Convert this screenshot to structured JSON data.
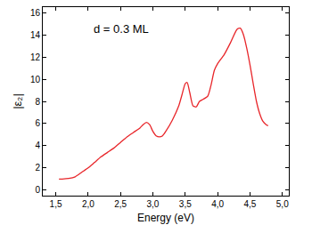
{
  "chart_data": {
    "type": "line",
    "x_label": "Energy (eV)",
    "y_label": "|ε₂|",
    "annotations": [
      "d = 0.3 ML"
    ],
    "color": "#e8262a",
    "grid": false,
    "x": [
      1.55,
      1.6,
      1.7,
      1.8,
      1.9,
      2.0,
      2.1,
      2.2,
      2.3,
      2.4,
      2.5,
      2.6,
      2.7,
      2.8,
      2.85,
      2.9,
      2.95,
      3.0,
      3.05,
      3.1,
      3.15,
      3.2,
      3.3,
      3.4,
      3.45,
      3.5,
      3.53,
      3.57,
      3.62,
      3.67,
      3.72,
      3.78,
      3.85,
      3.9,
      3.95,
      4.0,
      4.1,
      4.2,
      4.3,
      4.35,
      4.4,
      4.45,
      4.5,
      4.55,
      4.6,
      4.65,
      4.7,
      4.75,
      4.78
    ],
    "values": [
      1.0,
      1.0,
      1.05,
      1.2,
      1.6,
      2.0,
      2.5,
      3.0,
      3.4,
      3.8,
      4.3,
      4.8,
      5.2,
      5.6,
      5.9,
      6.1,
      5.9,
      5.3,
      4.9,
      4.8,
      4.9,
      5.3,
      6.3,
      7.6,
      8.6,
      9.6,
      9.7,
      8.8,
      7.6,
      7.5,
      8.0,
      8.2,
      8.5,
      9.5,
      10.8,
      11.4,
      12.2,
      13.3,
      14.5,
      14.6,
      14.0,
      12.8,
      11.3,
      9.6,
      8.0,
      6.9,
      6.2,
      5.9,
      5.8
    ],
    "xlim": [
      1.3,
      5.1
    ],
    "xticks": [
      {
        "value": 1.5,
        "label": "1,5"
      },
      {
        "value": 2.0,
        "label": "2,0"
      },
      {
        "value": 2.5,
        "label": "2,5"
      },
      {
        "value": 3.0,
        "label": "3,0"
      },
      {
        "value": 3.5,
        "label": "3,5"
      },
      {
        "value": 4.0,
        "label": "4,0"
      },
      {
        "value": 4.5,
        "label": "4,5"
      },
      {
        "value": 5.0,
        "label": "5,0"
      }
    ],
    "ylim": [
      -0.5,
      16.5
    ],
    "yticks": [
      0,
      2,
      4,
      6,
      8,
      10,
      12,
      14,
      16
    ]
  }
}
